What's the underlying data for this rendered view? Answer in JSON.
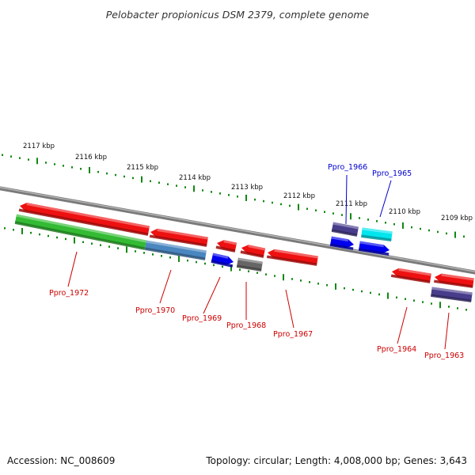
{
  "title": "Pelobacter propionicus DSM 2379, complete genome",
  "footer": {
    "accession": "Accession: NC_008609",
    "summary": "Topology: circular; Length: 4,008,000 bp; Genes: 3,643"
  },
  "colors": {
    "backbone": "#808080",
    "tick": "#118811",
    "label_red": "#cc0000",
    "label_blue": "#0000cc",
    "gene_red": "#ee1111",
    "gene_green": "#33bb33",
    "gene_steelblue": "#4a86bf",
    "gene_blue": "#0000ee",
    "gene_slate": "#483d8b",
    "gene_gray": "#666666",
    "gene_cyan": "#00e5ee"
  },
  "scale_kbp": [
    "2117 kbp",
    "2116 kbp",
    "2115 kbp",
    "2114 kbp",
    "2113 kbp",
    "2112 kbp",
    "2111 kbp",
    "2110 kbp",
    "2109 kbp"
  ],
  "genes": [
    {
      "name": "Ppro_1972",
      "color": "gene_green"
    },
    {
      "name": "Ppro_1970",
      "color": "gene_steelblue"
    },
    {
      "name": "Ppro_1969",
      "color": "gene_blue"
    },
    {
      "name": "Ppro_1968",
      "color": "gene_gray"
    },
    {
      "name": "Ppro_1967",
      "color": "gene_red"
    },
    {
      "name": "Ppro_1966",
      "color": "gene_slate"
    },
    {
      "name": "Ppro_1965",
      "color": "gene_cyan"
    },
    {
      "name": "Ppro_1964",
      "color": "gene_red"
    },
    {
      "name": "Ppro_1963",
      "color": "gene_slate"
    }
  ]
}
